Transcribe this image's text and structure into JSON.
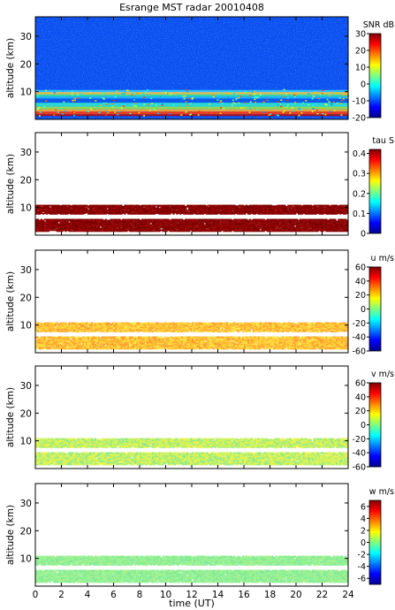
{
  "chart_data": {
    "type": "heatmap",
    "title": "Esrange MST radar 20010408",
    "xlabel": "time (UT)",
    "xlim": [
      0,
      24
    ],
    "x_ticks": [
      "0",
      "2",
      "4",
      "6",
      "8",
      "10",
      "12",
      "14",
      "16",
      "18",
      "20",
      "22",
      "24"
    ],
    "panels": [
      {
        "id": "snr",
        "ylabel": "altitude (km)",
        "ylim": [
          0,
          37
        ],
        "y_ticks": [
          "10",
          "20",
          "30"
        ],
        "colorbar_label": "SNR dB",
        "clim": [
          -20,
          30
        ],
        "colorbar_ticks": [
          "30",
          "20",
          "10",
          "0",
          "-10",
          "-20"
        ]
      },
      {
        "id": "tau",
        "ylabel": "altitude (km)",
        "ylim": [
          0,
          37
        ],
        "y_ticks": [
          "10",
          "20",
          "30"
        ],
        "colorbar_label": "tau S",
        "clim": [
          0,
          0.42
        ],
        "colorbar_ticks": [
          "0.4",
          "0.3",
          "0.2",
          "0.1",
          "0"
        ]
      },
      {
        "id": "u",
        "ylabel": "altitude (km)",
        "ylim": [
          0,
          37
        ],
        "y_ticks": [
          "10",
          "20",
          "30"
        ],
        "colorbar_label": "u m/s",
        "clim": [
          -60,
          60
        ],
        "colorbar_ticks": [
          "60",
          "40",
          "20",
          "0",
          "-20",
          "-40",
          "-60"
        ]
      },
      {
        "id": "v",
        "ylabel": "altitude (km)",
        "ylim": [
          0,
          37
        ],
        "y_ticks": [
          "10",
          "20",
          "30"
        ],
        "colorbar_label": "v m/s",
        "clim": [
          -60,
          60
        ],
        "colorbar_ticks": [
          "60",
          "40",
          "20",
          "0",
          "-20",
          "-40",
          "-60"
        ]
      },
      {
        "id": "w",
        "ylabel": "altitude (km)",
        "ylim": [
          0,
          37
        ],
        "y_ticks": [
          "10",
          "20",
          "30"
        ],
        "colorbar_label": "w m/s",
        "clim": [
          -7,
          7
        ],
        "colorbar_ticks": [
          "6",
          "4",
          "2",
          "0",
          "-2",
          "-4",
          "-6"
        ]
      }
    ]
  }
}
